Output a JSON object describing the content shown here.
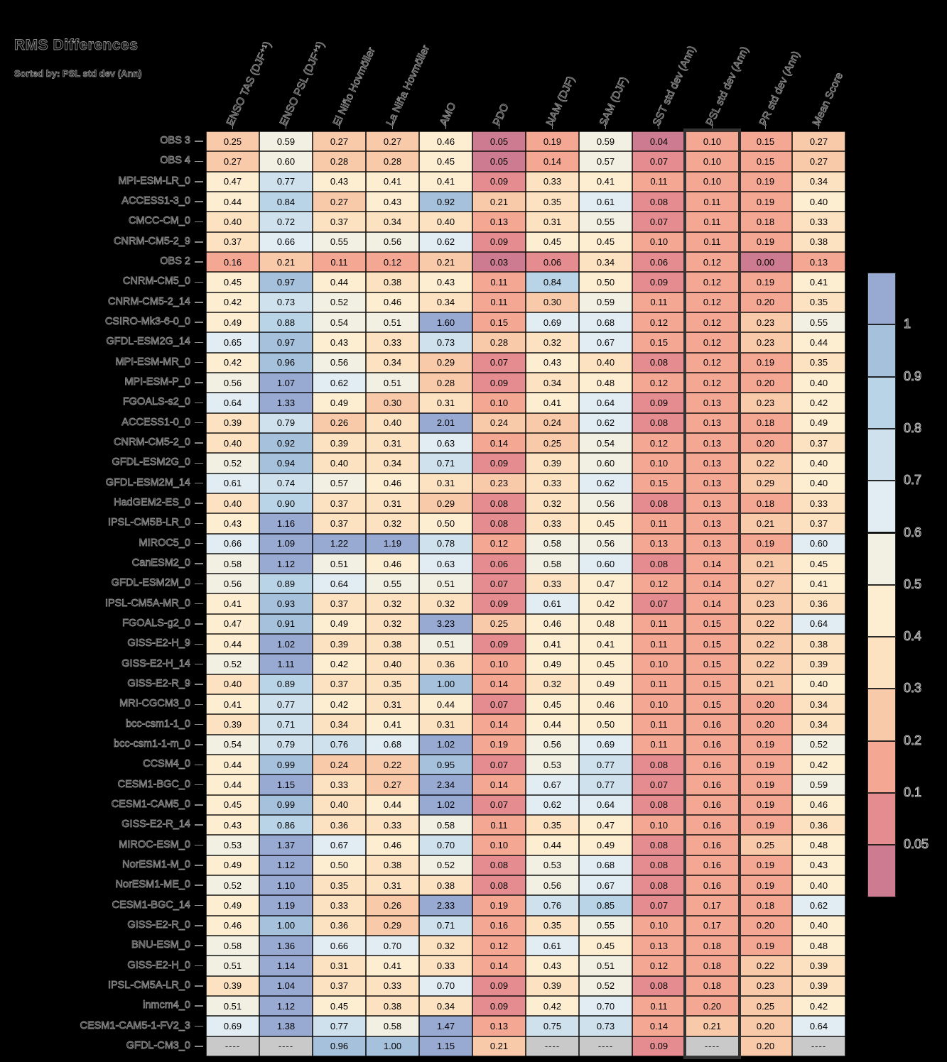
{
  "title": "RMS Differences",
  "subtitle": "Sorted by: PSL std dev (Ann)",
  "chart_data": {
    "type": "heatmap",
    "columns": [
      "ENSO TAS (DJF⁺¹)",
      "ENSO PSL (DJF⁺¹)",
      "El Niño Hovmöller",
      "La Niña Hovmöller",
      "AMO",
      "PDO",
      "NAM (DJF)",
      "SAM (DJF)",
      "SST std dev (Ann)",
      "PSL std dev (Ann)",
      "PR std dev (Ann)",
      "Mean Score"
    ],
    "highlighted_column": "PSL std dev (Ann)",
    "highlighted_column_index": 9,
    "missing_marker": "----",
    "rows": [
      {
        "model": "OBS 3",
        "values": [
          "0.25",
          "0.59",
          "0.27",
          "0.27",
          "0.46",
          "0.05",
          "0.19",
          "0.59",
          "0.04",
          "0.10",
          "0.15",
          "0.27"
        ]
      },
      {
        "model": "OBS 4",
        "values": [
          "0.27",
          "0.60",
          "0.28",
          "0.28",
          "0.45",
          "0.05",
          "0.14",
          "0.57",
          "0.07",
          "0.10",
          "0.15",
          "0.27"
        ]
      },
      {
        "model": "MPI-ESM-LR_0",
        "values": [
          "0.47",
          "0.77",
          "0.43",
          "0.41",
          "0.41",
          "0.09",
          "0.33",
          "0.41",
          "0.11",
          "0.10",
          "0.19",
          "0.34"
        ]
      },
      {
        "model": "ACCESS1-3_0",
        "values": [
          "0.44",
          "0.84",
          "0.27",
          "0.43",
          "0.92",
          "0.21",
          "0.35",
          "0.61",
          "0.08",
          "0.11",
          "0.19",
          "0.40"
        ]
      },
      {
        "model": "CMCC-CM_0",
        "values": [
          "0.40",
          "0.72",
          "0.37",
          "0.34",
          "0.40",
          "0.13",
          "0.31",
          "0.55",
          "0.07",
          "0.11",
          "0.18",
          "0.33"
        ]
      },
      {
        "model": "CNRM-CM5-2_9",
        "values": [
          "0.37",
          "0.66",
          "0.55",
          "0.56",
          "0.62",
          "0.09",
          "0.45",
          "0.45",
          "0.10",
          "0.11",
          "0.19",
          "0.38"
        ]
      },
      {
        "model": "OBS 2",
        "values": [
          "0.16",
          "0.21",
          "0.11",
          "0.12",
          "0.21",
          "0.03",
          "0.06",
          "0.34",
          "0.06",
          "0.12",
          "0.00",
          "0.13"
        ]
      },
      {
        "model": "CNRM-CM5_0",
        "values": [
          "0.45",
          "0.97",
          "0.44",
          "0.38",
          "0.43",
          "0.11",
          "0.84",
          "0.50",
          "0.09",
          "0.12",
          "0.19",
          "0.41"
        ]
      },
      {
        "model": "CNRM-CM5-2_14",
        "values": [
          "0.42",
          "0.73",
          "0.52",
          "0.46",
          "0.34",
          "0.11",
          "0.30",
          "0.59",
          "0.11",
          "0.12",
          "0.20",
          "0.35"
        ]
      },
      {
        "model": "CSIRO-Mk3-6-0_0",
        "values": [
          "0.49",
          "0.88",
          "0.54",
          "0.51",
          "1.60",
          "0.15",
          "0.69",
          "0.68",
          "0.12",
          "0.12",
          "0.23",
          "0.55"
        ]
      },
      {
        "model": "GFDL-ESM2G_14",
        "values": [
          "0.65",
          "0.97",
          "0.43",
          "0.33",
          "0.73",
          "0.28",
          "0.32",
          "0.67",
          "0.15",
          "0.12",
          "0.23",
          "0.44"
        ]
      },
      {
        "model": "MPI-ESM-MR_0",
        "values": [
          "0.42",
          "0.96",
          "0.56",
          "0.34",
          "0.29",
          "0.07",
          "0.43",
          "0.40",
          "0.08",
          "0.12",
          "0.19",
          "0.35"
        ]
      },
      {
        "model": "MPI-ESM-P_0",
        "values": [
          "0.56",
          "1.07",
          "0.62",
          "0.51",
          "0.28",
          "0.09",
          "0.34",
          "0.48",
          "0.12",
          "0.12",
          "0.20",
          "0.40"
        ]
      },
      {
        "model": "FGOALS-s2_0",
        "values": [
          "0.64",
          "1.33",
          "0.49",
          "0.30",
          "0.31",
          "0.10",
          "0.41",
          "0.64",
          "0.09",
          "0.13",
          "0.23",
          "0.42"
        ]
      },
      {
        "model": "ACCESS1-0_0",
        "values": [
          "0.39",
          "0.79",
          "0.26",
          "0.40",
          "2.01",
          "0.24",
          "0.24",
          "0.62",
          "0.08",
          "0.13",
          "0.18",
          "0.49"
        ]
      },
      {
        "model": "CNRM-CM5-2_0",
        "values": [
          "0.40",
          "0.92",
          "0.39",
          "0.31",
          "0.63",
          "0.14",
          "0.25",
          "0.54",
          "0.12",
          "0.13",
          "0.20",
          "0.37"
        ]
      },
      {
        "model": "GFDL-ESM2G_0",
        "values": [
          "0.52",
          "0.94",
          "0.40",
          "0.34",
          "0.71",
          "0.09",
          "0.39",
          "0.60",
          "0.10",
          "0.13",
          "0.22",
          "0.40"
        ]
      },
      {
        "model": "GFDL-ESM2M_14",
        "values": [
          "0.61",
          "0.74",
          "0.57",
          "0.46",
          "0.31",
          "0.23",
          "0.33",
          "0.62",
          "0.15",
          "0.13",
          "0.29",
          "0.40"
        ]
      },
      {
        "model": "HadGEM2-ES_0",
        "values": [
          "0.40",
          "0.90",
          "0.37",
          "0.31",
          "0.29",
          "0.08",
          "0.32",
          "0.56",
          "0.08",
          "0.13",
          "0.18",
          "0.33"
        ]
      },
      {
        "model": "IPSL-CM5B-LR_0",
        "values": [
          "0.43",
          "1.16",
          "0.37",
          "0.32",
          "0.50",
          "0.08",
          "0.33",
          "0.45",
          "0.11",
          "0.13",
          "0.21",
          "0.37"
        ]
      },
      {
        "model": "MIROC5_0",
        "values": [
          "0.66",
          "1.09",
          "1.22",
          "1.19",
          "0.78",
          "0.12",
          "0.58",
          "0.56",
          "0.13",
          "0.13",
          "0.19",
          "0.60"
        ]
      },
      {
        "model": "CanESM2_0",
        "values": [
          "0.58",
          "1.12",
          "0.51",
          "0.46",
          "0.63",
          "0.06",
          "0.58",
          "0.60",
          "0.08",
          "0.14",
          "0.21",
          "0.45"
        ]
      },
      {
        "model": "GFDL-ESM2M_0",
        "values": [
          "0.56",
          "0.89",
          "0.64",
          "0.55",
          "0.51",
          "0.07",
          "0.33",
          "0.47",
          "0.12",
          "0.14",
          "0.27",
          "0.41"
        ]
      },
      {
        "model": "IPSL-CM5A-MR_0",
        "values": [
          "0.41",
          "0.93",
          "0.37",
          "0.32",
          "0.32",
          "0.09",
          "0.61",
          "0.42",
          "0.07",
          "0.14",
          "0.23",
          "0.36"
        ]
      },
      {
        "model": "FGOALS-g2_0",
        "values": [
          "0.47",
          "0.91",
          "0.49",
          "0.32",
          "3.23",
          "0.25",
          "0.46",
          "0.48",
          "0.11",
          "0.15",
          "0.22",
          "0.64"
        ]
      },
      {
        "model": "GISS-E2-H_9",
        "values": [
          "0.44",
          "1.02",
          "0.39",
          "0.38",
          "0.51",
          "0.09",
          "0.41",
          "0.41",
          "0.11",
          "0.15",
          "0.22",
          "0.38"
        ]
      },
      {
        "model": "GISS-E2-H_14",
        "values": [
          "0.52",
          "1.11",
          "0.42",
          "0.40",
          "0.36",
          "0.10",
          "0.49",
          "0.45",
          "0.10",
          "0.15",
          "0.22",
          "0.39"
        ]
      },
      {
        "model": "GISS-E2-R_9",
        "values": [
          "0.40",
          "0.89",
          "0.37",
          "0.35",
          "1.00",
          "0.14",
          "0.32",
          "0.49",
          "0.11",
          "0.15",
          "0.21",
          "0.40"
        ]
      },
      {
        "model": "MRI-CGCM3_0",
        "values": [
          "0.41",
          "0.77",
          "0.42",
          "0.31",
          "0.44",
          "0.07",
          "0.45",
          "0.46",
          "0.10",
          "0.15",
          "0.20",
          "0.34"
        ]
      },
      {
        "model": "bcc-csm1-1_0",
        "values": [
          "0.39",
          "0.71",
          "0.34",
          "0.41",
          "0.31",
          "0.14",
          "0.44",
          "0.50",
          "0.11",
          "0.16",
          "0.20",
          "0.34"
        ]
      },
      {
        "model": "bcc-csm1-1-m_0",
        "values": [
          "0.54",
          "0.79",
          "0.76",
          "0.68",
          "1.02",
          "0.19",
          "0.56",
          "0.69",
          "0.11",
          "0.16",
          "0.19",
          "0.52"
        ]
      },
      {
        "model": "CCSM4_0",
        "values": [
          "0.44",
          "0.99",
          "0.24",
          "0.22",
          "0.95",
          "0.07",
          "0.53",
          "0.77",
          "0.08",
          "0.16",
          "0.19",
          "0.42"
        ]
      },
      {
        "model": "CESM1-BGC_0",
        "values": [
          "0.44",
          "1.15",
          "0.33",
          "0.27",
          "2.34",
          "0.14",
          "0.67",
          "0.77",
          "0.07",
          "0.16",
          "0.19",
          "0.59"
        ]
      },
      {
        "model": "CESM1-CAM5_0",
        "values": [
          "0.45",
          "0.99",
          "0.40",
          "0.44",
          "1.02",
          "0.07",
          "0.62",
          "0.64",
          "0.08",
          "0.16",
          "0.19",
          "0.46"
        ]
      },
      {
        "model": "GISS-E2-R_14",
        "values": [
          "0.43",
          "0.86",
          "0.36",
          "0.33",
          "0.58",
          "0.11",
          "0.35",
          "0.47",
          "0.10",
          "0.16",
          "0.19",
          "0.36"
        ]
      },
      {
        "model": "MIROC-ESM_0",
        "values": [
          "0.53",
          "1.37",
          "0.67",
          "0.46",
          "0.70",
          "0.10",
          "0.44",
          "0.49",
          "0.08",
          "0.16",
          "0.25",
          "0.48"
        ]
      },
      {
        "model": "NorESM1-M_0",
        "values": [
          "0.49",
          "1.12",
          "0.50",
          "0.38",
          "0.52",
          "0.08",
          "0.53",
          "0.68",
          "0.08",
          "0.16",
          "0.19",
          "0.43"
        ]
      },
      {
        "model": "NorESM1-ME_0",
        "values": [
          "0.52",
          "1.10",
          "0.35",
          "0.31",
          "0.38",
          "0.08",
          "0.56",
          "0.67",
          "0.08",
          "0.16",
          "0.19",
          "0.40"
        ]
      },
      {
        "model": "CESM1-BGC_14",
        "values": [
          "0.49",
          "1.19",
          "0.33",
          "0.26",
          "2.33",
          "0.19",
          "0.76",
          "0.85",
          "0.07",
          "0.17",
          "0.18",
          "0.62"
        ]
      },
      {
        "model": "GISS-E2-R_0",
        "values": [
          "0.46",
          "1.00",
          "0.36",
          "0.29",
          "0.71",
          "0.16",
          "0.35",
          "0.55",
          "0.10",
          "0.17",
          "0.20",
          "0.40"
        ]
      },
      {
        "model": "BNU-ESM_0",
        "values": [
          "0.58",
          "1.36",
          "0.66",
          "0.70",
          "0.32",
          "0.12",
          "0.61",
          "0.45",
          "0.13",
          "0.18",
          "0.19",
          "0.48"
        ]
      },
      {
        "model": "GISS-E2-H_0",
        "values": [
          "0.51",
          "1.14",
          "0.31",
          "0.41",
          "0.33",
          "0.14",
          "0.43",
          "0.51",
          "0.12",
          "0.18",
          "0.22",
          "0.39"
        ]
      },
      {
        "model": "IPSL-CM5A-LR_0",
        "values": [
          "0.39",
          "1.04",
          "0.37",
          "0.33",
          "0.70",
          "0.09",
          "0.39",
          "0.52",
          "0.08",
          "0.18",
          "0.23",
          "0.39"
        ]
      },
      {
        "model": "inmcm4_0",
        "values": [
          "0.51",
          "1.12",
          "0.45",
          "0.38",
          "0.34",
          "0.09",
          "0.42",
          "0.70",
          "0.11",
          "0.20",
          "0.25",
          "0.42"
        ]
      },
      {
        "model": "CESM1-CAM5-1-FV2_3",
        "values": [
          "0.69",
          "1.38",
          "0.77",
          "0.58",
          "1.47",
          "0.13",
          "0.75",
          "0.73",
          "0.14",
          "0.21",
          "0.20",
          "0.64"
        ]
      },
      {
        "model": "GFDL-CM3_0",
        "values": [
          "----",
          "----",
          "0.96",
          "1.00",
          "1.15",
          "0.21",
          "----",
          "----",
          "0.09",
          "----",
          "0.20",
          "----"
        ]
      }
    ],
    "colorbar": {
      "position": "right",
      "tick_labels": [
        "1",
        "0.9",
        "0.8",
        "0.7",
        "0.6",
        "0.5",
        "0.4",
        "0.3",
        "0.2",
        "0.1",
        "0.05"
      ],
      "bin_colors_high_to_low": [
        "#98a9d2",
        "#a6c1dc",
        "#bad4e7",
        "#d0e1ee",
        "#e2ecf3",
        "#f1f0e2",
        "#fdeed2",
        "#fce2c1",
        "#f9caa9",
        "#f4a894",
        "#e58c91",
        "#cd7b90"
      ]
    },
    "missing_color": "#c9c9c9",
    "bin_edges": [
      0.05,
      0.1,
      0.2,
      0.3,
      0.4,
      0.5,
      0.6,
      0.7,
      0.8,
      0.9,
      1.0
    ],
    "boundary_lower_overrides": [
      [
        0,
        5
      ],
      [
        1,
        1
      ],
      [
        1,
        5
      ],
      [
        4,
        0
      ],
      [
        4,
        4
      ],
      [
        7,
        7
      ],
      [
        8,
        6
      ],
      [
        8,
        10
      ],
      [
        11,
        7
      ],
      [
        12,
        10
      ],
      [
        13,
        3
      ],
      [
        14,
        3
      ],
      [
        15,
        0
      ],
      [
        15,
        10
      ],
      [
        16,
        2
      ],
      [
        16,
        7
      ],
      [
        18,
        0
      ],
      [
        18,
        1
      ],
      [
        19,
        4
      ],
      [
        26,
        3
      ],
      [
        27,
        0
      ],
      [
        27,
        4
      ],
      [
        28,
        10
      ],
      [
        29,
        7
      ],
      [
        29,
        10
      ],
      [
        33,
        2
      ],
      [
        36,
        2
      ],
      [
        39,
        1
      ],
      [
        39,
        10
      ],
      [
        40,
        3
      ],
      [
        42,
        4
      ],
      [
        43,
        7
      ],
      [
        43,
        9
      ],
      [
        45,
        3
      ]
    ]
  }
}
